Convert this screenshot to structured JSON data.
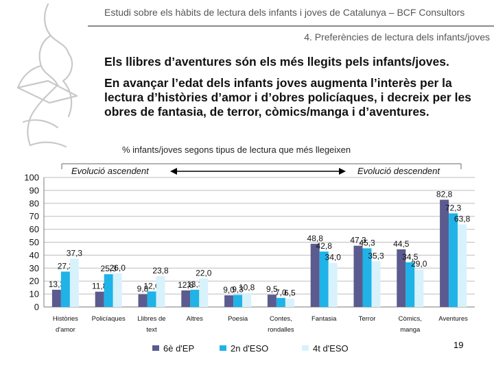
{
  "header": {
    "title": "Estudi sobre els hàbits de lectura dels infants i joves de Catalunya – BCF Consultors",
    "section": "4. Preferències de lectura dels infants/joves"
  },
  "content": {
    "headline": "Els llibres d’aventures són els més llegits pels infants/joves.",
    "paragraph": "En avançar l’edat dels infants joves augmenta l’interès per la lectura d’històries d’amor i d’obres policíaques, i decreix per les obres de fantasia, de terror, còmics/manga i d’aventures."
  },
  "chart_data": {
    "type": "bar",
    "title": "% infants/joves segons tipus de lectura que més llegeixen",
    "categories": [
      [
        "Històries",
        "d'amor"
      ],
      [
        "Policíaques"
      ],
      [
        "Llibres de",
        "text"
      ],
      [
        "Altres"
      ],
      [
        "Poesia"
      ],
      [
        "Contes,",
        "rondalles"
      ],
      [
        "Fantasia"
      ],
      [
        "Terror"
      ],
      [
        "Còmics,",
        "manga"
      ],
      [
        "Aventures"
      ]
    ],
    "series": [
      {
        "name": "6è d'EP",
        "color": "#5b5b8f",
        "values": [
          13.3,
          11.8,
          9.8,
          12.8,
          9.0,
          9.5,
          48.8,
          47.3,
          44.5,
          82.8
        ]
      },
      {
        "name": "2n d'ESO",
        "color": "#1fb3e8",
        "values": [
          27.3,
          25.3,
          12.0,
          13.3,
          9.3,
          7.0,
          42.8,
          45.3,
          34.5,
          72.3
        ]
      },
      {
        "name": "4t d'ESO",
        "color": "#d8f2fb",
        "values": [
          37.3,
          26.0,
          23.8,
          22.0,
          10.8,
          6.5,
          34.0,
          35.3,
          29.0,
          63.8
        ]
      }
    ],
    "ylim": [
      0,
      100
    ],
    "yticks": [
      0,
      10,
      20,
      30,
      40,
      50,
      60,
      70,
      80,
      90,
      100
    ],
    "grid": true,
    "legend": "bottom",
    "annotations": {
      "left": "Evolució ascendent",
      "right": "Evolució descendent"
    }
  },
  "page_number": "19"
}
